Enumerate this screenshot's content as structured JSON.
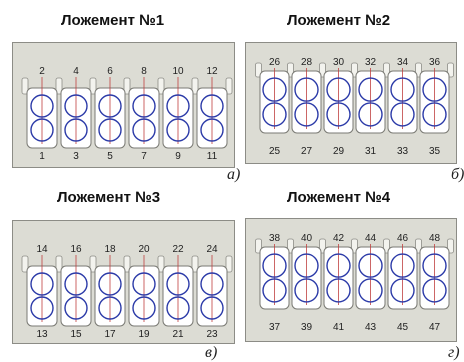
{
  "panels": [
    {
      "title": "Ложемент №1",
      "letter": "а)",
      "top_labels": [
        "2",
        "4",
        "6",
        "8",
        "10",
        "12"
      ],
      "bottom_labels": [
        "1",
        "3",
        "5",
        "7",
        "9",
        "11"
      ]
    },
    {
      "title": "Ложемент №2",
      "letter": "б)",
      "top_labels": [
        "26",
        "28",
        "30",
        "32",
        "34",
        "36"
      ],
      "bottom_labels": [
        "25",
        "27",
        "29",
        "31",
        "33",
        "35"
      ]
    },
    {
      "title": "Ложемент №3",
      "letter": "в)",
      "top_labels": [
        "14",
        "16",
        "18",
        "20",
        "22",
        "24"
      ],
      "bottom_labels": [
        "13",
        "15",
        "17",
        "19",
        "21",
        "23"
      ]
    },
    {
      "title": "Ложемент №4",
      "letter": "г)",
      "top_labels": [
        "38",
        "40",
        "42",
        "44",
        "46",
        "48"
      ],
      "bottom_labels": [
        "37",
        "39",
        "41",
        "43",
        "45",
        "47"
      ]
    }
  ],
  "colors": {
    "background": "#dcdcd4",
    "slot_fill": "#ffffff",
    "circle_stroke": "#2b3aa8",
    "pointer_line": "#c04040"
  }
}
